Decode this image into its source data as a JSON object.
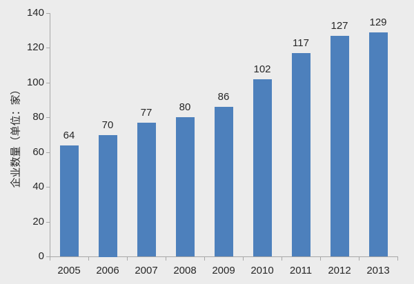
{
  "chart_data": {
    "type": "bar",
    "title": "",
    "categories": [
      "2005",
      "2006",
      "2007",
      "2008",
      "2009",
      "2010",
      "2011",
      "2012",
      "2013"
    ],
    "values": [
      64,
      70,
      77,
      80,
      86,
      102,
      117,
      127,
      129
    ],
    "series_name": "",
    "xlabel": "",
    "ylabel": "企业数量（单位：家）",
    "ylim": [
      0,
      140
    ],
    "ytick_step": 20,
    "yticks": [
      0,
      20,
      40,
      60,
      80,
      100,
      120,
      140
    ],
    "grid": false,
    "legend": "none",
    "data_labels": true,
    "colors": {
      "bar": "#4D80BC",
      "background": "#ECECEC",
      "axis": "#A6A6A6",
      "text": "#262626"
    }
  }
}
